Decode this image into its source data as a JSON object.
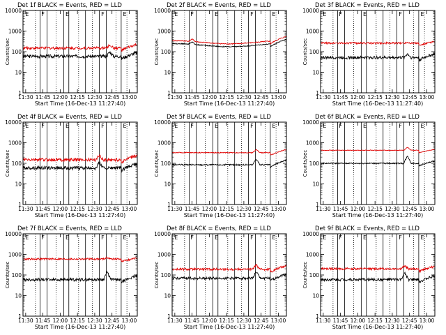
{
  "figure": {
    "xlabel": "Start Time (16-Dec-13 11:27:40)",
    "ylabel": "Counts/sec",
    "x_ticks": [
      "11:30",
      "11:45",
      "12:00",
      "12:15",
      "12:30",
      "12:45",
      "13:00"
    ],
    "y_ticks": [
      "1",
      "10",
      "100",
      "1000",
      "10000"
    ],
    "colors": {
      "events": "#000000",
      "lld": "#e00000",
      "axes": "#000000"
    },
    "marker_letters": [
      "E",
      "F",
      "E",
      "F",
      "E"
    ]
  },
  "chart_data": [
    {
      "type": "line",
      "title": "Det 1f BLACK = Events, RED = LLD",
      "yscale": "log",
      "ylim": [
        1,
        10000
      ],
      "xlim": [
        "11:27:40",
        "13:07:00"
      ],
      "series": [
        {
          "name": "Events",
          "level": 60,
          "noise": 0.18,
          "spike_at": 12.72,
          "spike_factor": 1.6,
          "end_trend": 1.5
        },
        {
          "name": "LLD",
          "level": 150,
          "noise": 0.15,
          "spike_at": 12.72,
          "spike_factor": 1.4,
          "end_trend": 1.5
        }
      ]
    },
    {
      "type": "line",
      "title": "Det 2f BLACK = Events, RED = LLD",
      "yscale": "log",
      "ylim": [
        1,
        10000
      ],
      "xlim": [
        "11:27:40",
        "13:07:00"
      ],
      "series": [
        {
          "name": "Events",
          "level": 210,
          "noise": 0.05,
          "spike_at": 11.75,
          "spike_factor": 1.3,
          "end_trend": 1.6,
          "wave": 0.35
        },
        {
          "name": "LLD",
          "level": 290,
          "noise": 0.05,
          "spike_at": 11.75,
          "spike_factor": 1.3,
          "end_trend": 1.6,
          "wave": 0.35
        }
      ]
    },
    {
      "type": "line",
      "title": "Det 3f BLACK = Events, RED = LLD",
      "yscale": "log",
      "ylim": [
        1,
        10000
      ],
      "xlim": [
        "11:27:40",
        "13:07:00"
      ],
      "series": [
        {
          "name": "Events",
          "level": 52,
          "noise": 0.16,
          "spike_at": 12.72,
          "spike_factor": 1.5,
          "end_trend": 1.5
        },
        {
          "name": "LLD",
          "level": 260,
          "noise": 0.1,
          "spike_at": 12.72,
          "spike_factor": 1.1,
          "end_trend": 1.2
        }
      ]
    },
    {
      "type": "line",
      "title": "Det 4f BLACK = Events, RED = LLD",
      "yscale": "log",
      "ylim": [
        1,
        10000
      ],
      "xlim": [
        "11:27:40",
        "13:07:00"
      ],
      "series": [
        {
          "name": "Events",
          "level": 60,
          "noise": 0.18,
          "spike_at": 12.57,
          "spike_factor": 1.8,
          "end_trend": 1.6
        },
        {
          "name": "LLD",
          "level": 150,
          "noise": 0.18,
          "spike_at": 12.57,
          "spike_factor": 1.6,
          "end_trend": 1.6
        }
      ]
    },
    {
      "type": "line",
      "title": "Det 5f BLACK = Events, RED = LLD",
      "yscale": "log",
      "ylim": [
        1,
        10000
      ],
      "xlim": [
        "11:27:40",
        "13:07:00"
      ],
      "series": [
        {
          "name": "Events",
          "level": 85,
          "noise": 0.08,
          "spike_at": 12.68,
          "spike_factor": 1.9,
          "end_trend": 1.7
        },
        {
          "name": "LLD",
          "level": 330,
          "noise": 0.05,
          "spike_at": 12.68,
          "spike_factor": 1.4,
          "end_trend": 1.4
        }
      ]
    },
    {
      "type": "line",
      "title": "Det 6f BLACK = Events, RED = LLD",
      "yscale": "log",
      "ylim": [
        1,
        10000
      ],
      "xlim": [
        "11:27:40",
        "13:07:00"
      ],
      "series": [
        {
          "name": "Events",
          "level": 100,
          "noise": 0.07,
          "spike_at": 12.72,
          "spike_factor": 2.2,
          "end_trend": 1.3
        },
        {
          "name": "LLD",
          "level": 430,
          "noise": 0.03,
          "spike_at": 12.72,
          "spike_factor": 1.4,
          "end_trend": 1.1
        }
      ]
    },
    {
      "type": "line",
      "title": "Det 7f BLACK = Events, RED = LLD",
      "yscale": "log",
      "ylim": [
        1,
        10000
      ],
      "xlim": [
        "11:27:40",
        "13:07:00"
      ],
      "series": [
        {
          "name": "Events",
          "level": 60,
          "noise": 0.16,
          "spike_at": 12.68,
          "spike_factor": 2.2,
          "end_trend": 1.5
        },
        {
          "name": "LLD",
          "level": 600,
          "noise": 0.1,
          "spike_at": 12.68,
          "spike_factor": 1.2,
          "end_trend": 1.1
        }
      ]
    },
    {
      "type": "line",
      "title": "Det 8f BLACK = Events, RED = LLD",
      "yscale": "log",
      "ylim": [
        1,
        10000
      ],
      "xlim": [
        "11:27:40",
        "13:07:00"
      ],
      "series": [
        {
          "name": "Events",
          "level": 70,
          "noise": 0.14,
          "spike_at": 12.68,
          "spike_factor": 2.0,
          "end_trend": 1.6
        },
        {
          "name": "LLD",
          "level": 190,
          "noise": 0.13,
          "spike_at": 12.68,
          "spike_factor": 1.6,
          "end_trend": 1.5
        }
      ]
    },
    {
      "type": "line",
      "title": "Det 9f BLACK = Events, RED = LLD",
      "yscale": "log",
      "ylim": [
        1,
        10000
      ],
      "xlim": [
        "11:27:40",
        "13:07:00"
      ],
      "series": [
        {
          "name": "Events",
          "level": 60,
          "noise": 0.15,
          "spike_at": 12.68,
          "spike_factor": 2.0,
          "end_trend": 1.5
        },
        {
          "name": "LLD",
          "level": 200,
          "noise": 0.12,
          "spike_at": 12.68,
          "spike_factor": 1.4,
          "end_trend": 1.3
        }
      ]
    }
  ],
  "markers": {
    "solid_lines": [
      "11:42:30",
      "11:48:30",
      "12:03:00",
      "12:07:30",
      "12:22:00",
      "12:34:00",
      "12:40:00",
      "12:53:00"
    ],
    "dotted_lines": [
      "11:38:30",
      "11:56:30",
      "12:16:00",
      "12:28:00",
      "12:48:30",
      "12:58:00"
    ],
    "letter_positions": [
      "11:29:00",
      "11:43:00",
      "12:04:00",
      "12:35:00",
      "12:54:00"
    ]
  }
}
